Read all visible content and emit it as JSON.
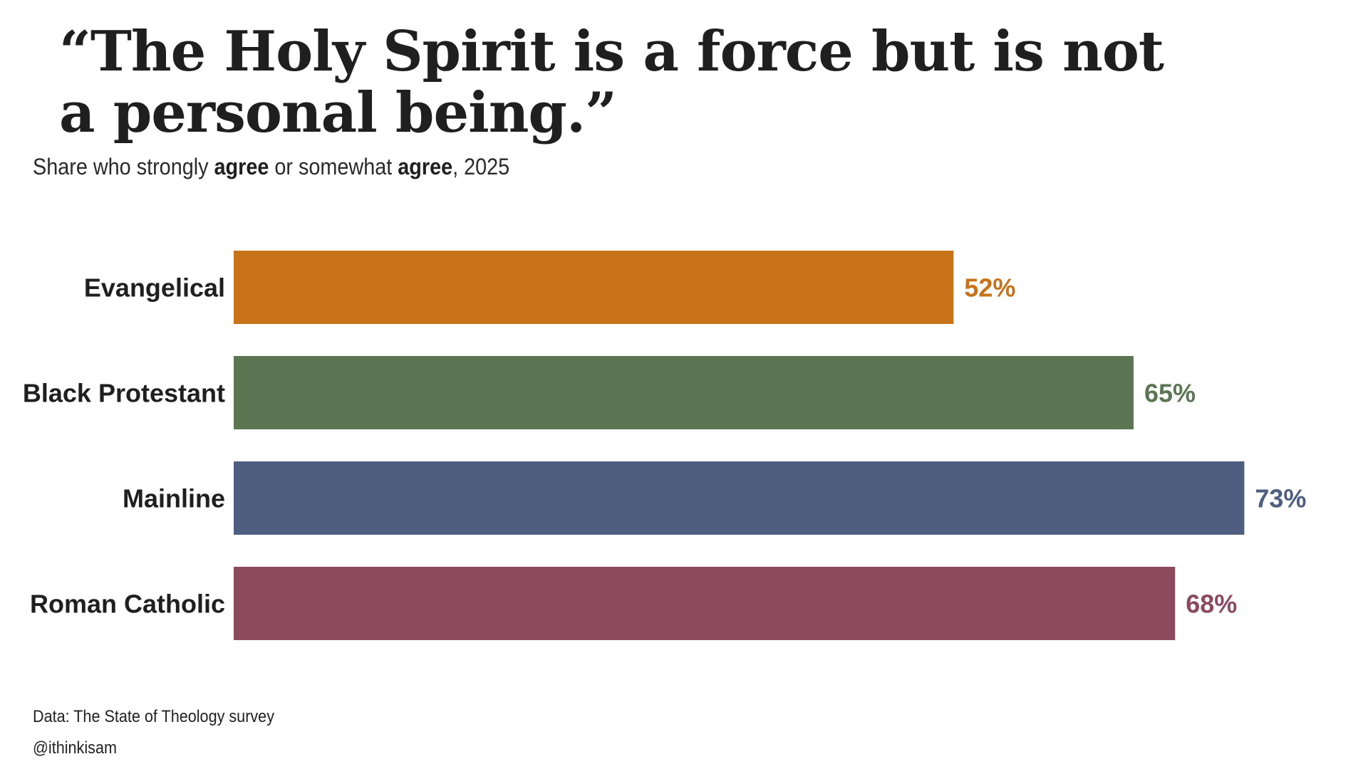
{
  "title": "“The Holy Spirit is a force but is not a personal being.”",
  "subtitle": {
    "parts": [
      {
        "text": "Share who strongly ",
        "bold": false
      },
      {
        "text": "agree",
        "bold": true
      },
      {
        "text": " or somewhat ",
        "bold": false
      },
      {
        "text": "agree",
        "bold": true
      },
      {
        "text": ", 2025",
        "bold": false
      }
    ]
  },
  "chart_data": {
    "type": "bar",
    "orientation": "horizontal",
    "categories": [
      "Evangelical",
      "Black Protestant",
      "Mainline",
      "Roman Catholic"
    ],
    "values": [
      52,
      65,
      73,
      68
    ],
    "value_labels": [
      "52%",
      "65%",
      "73%",
      "68%"
    ],
    "colors": [
      "#C8721A",
      "#5C7653",
      "#4F5D80",
      "#8B4A5E"
    ],
    "xlim": [
      0,
      100
    ],
    "grid": false,
    "legend": "none"
  },
  "footer": {
    "source": "Data: The State of Theology survey",
    "handle": "@ithinkisam"
  }
}
